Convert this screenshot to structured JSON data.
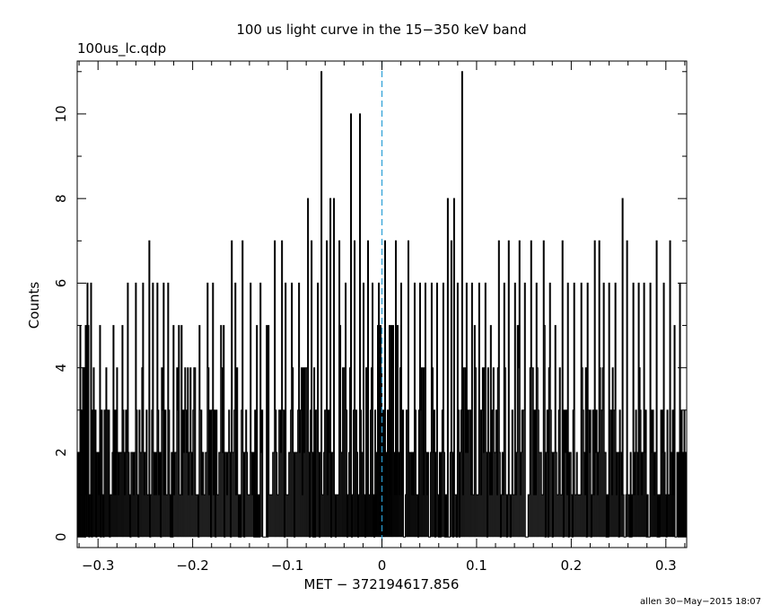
{
  "chart_data": {
    "type": "line",
    "title": "100 us light curve in the 15−350 keV band",
    "subtitle": "100us_lc.qdp",
    "xlabel": "MET − 372194617.856",
    "ylabel": "Counts",
    "footer": "allen 30−May−2015 18:07",
    "xlim": [
      -0.322,
      0.322
    ],
    "ylim": [
      -0.25,
      11.25
    ],
    "x_ticks": [
      {
        "value": -0.3,
        "label": "−0.3"
      },
      {
        "value": -0.2,
        "label": "−0.2"
      },
      {
        "value": -0.1,
        "label": "−0.1"
      },
      {
        "value": 0,
        "label": "0"
      },
      {
        "value": 0.1,
        "label": "0.1"
      },
      {
        "value": 0.2,
        "label": "0.2"
      },
      {
        "value": 0.3,
        "label": "0.3"
      }
    ],
    "y_ticks": [
      {
        "value": 0,
        "label": "0"
      },
      {
        "value": 2,
        "label": "2"
      },
      {
        "value": 4,
        "label": "4"
      },
      {
        "value": 6,
        "label": "6"
      },
      {
        "value": 8,
        "label": "8"
      },
      {
        "value": 10,
        "label": "10"
      }
    ],
    "bin_width": 0.0001,
    "reference_line": {
      "x": 0,
      "color": "#2a9fd6",
      "style": "dashed"
    },
    "series_color": "#000000",
    "grid": false,
    "peaks": [
      {
        "x": -0.312,
        "y": 6
      },
      {
        "x": -0.3075,
        "y": 6
      },
      {
        "x": -0.298,
        "y": 5
      },
      {
        "x": -0.284,
        "y": 5
      },
      {
        "x": -0.275,
        "y": 5
      },
      {
        "x": -0.269,
        "y": 6
      },
      {
        "x": -0.26,
        "y": 6
      },
      {
        "x": -0.253,
        "y": 6
      },
      {
        "x": -0.2465,
        "y": 7
      },
      {
        "x": -0.242,
        "y": 6
      },
      {
        "x": -0.238,
        "y": 6
      },
      {
        "x": -0.231,
        "y": 6
      },
      {
        "x": -0.226,
        "y": 6
      },
      {
        "x": -0.212,
        "y": 5
      },
      {
        "x": -0.193,
        "y": 5
      },
      {
        "x": -0.185,
        "y": 6
      },
      {
        "x": -0.179,
        "y": 6
      },
      {
        "x": -0.17,
        "y": 5
      },
      {
        "x": -0.159,
        "y": 7
      },
      {
        "x": -0.155,
        "y": 6
      },
      {
        "x": -0.148,
        "y": 7
      },
      {
        "x": -0.139,
        "y": 6
      },
      {
        "x": -0.129,
        "y": 6
      },
      {
        "x": -0.122,
        "y": 5
      },
      {
        "x": -0.114,
        "y": 7
      },
      {
        "x": -0.106,
        "y": 7
      },
      {
        "x": -0.102,
        "y": 6
      },
      {
        "x": -0.096,
        "y": 6
      },
      {
        "x": -0.088,
        "y": 6
      },
      {
        "x": -0.079,
        "y": 8
      },
      {
        "x": -0.075,
        "y": 7
      },
      {
        "x": -0.068,
        "y": 6
      },
      {
        "x": -0.064,
        "y": 11
      },
      {
        "x": -0.059,
        "y": 7
      },
      {
        "x": -0.055,
        "y": 8
      },
      {
        "x": -0.051,
        "y": 8
      },
      {
        "x": -0.045,
        "y": 7
      },
      {
        "x": -0.039,
        "y": 6
      },
      {
        "x": -0.033,
        "y": 10
      },
      {
        "x": -0.029,
        "y": 7
      },
      {
        "x": -0.024,
        "y": 10
      },
      {
        "x": -0.02,
        "y": 6
      },
      {
        "x": -0.015,
        "y": 7
      },
      {
        "x": -0.01,
        "y": 6
      },
      {
        "x": -0.004,
        "y": 6
      },
      {
        "x": 0.003,
        "y": 7
      },
      {
        "x": 0.008,
        "y": 5
      },
      {
        "x": 0.014,
        "y": 7
      },
      {
        "x": 0.02,
        "y": 6
      },
      {
        "x": 0.027,
        "y": 7
      },
      {
        "x": 0.034,
        "y": 6
      },
      {
        "x": 0.04,
        "y": 6
      },
      {
        "x": 0.045,
        "y": 6
      },
      {
        "x": 0.052,
        "y": 6
      },
      {
        "x": 0.058,
        "y": 6
      },
      {
        "x": 0.064,
        "y": 6
      },
      {
        "x": 0.069,
        "y": 8
      },
      {
        "x": 0.073,
        "y": 7
      },
      {
        "x": 0.076,
        "y": 8
      },
      {
        "x": 0.08,
        "y": 6
      },
      {
        "x": 0.084,
        "y": 11
      },
      {
        "x": 0.089,
        "y": 6
      },
      {
        "x": 0.095,
        "y": 6
      },
      {
        "x": 0.102,
        "y": 6
      },
      {
        "x": 0.109,
        "y": 6
      },
      {
        "x": 0.115,
        "y": 5
      },
      {
        "x": 0.123,
        "y": 7
      },
      {
        "x": 0.129,
        "y": 6
      },
      {
        "x": 0.134,
        "y": 7
      },
      {
        "x": 0.14,
        "y": 6
      },
      {
        "x": 0.145,
        "y": 7
      },
      {
        "x": 0.151,
        "y": 6
      },
      {
        "x": 0.157,
        "y": 7
      },
      {
        "x": 0.163,
        "y": 6
      },
      {
        "x": 0.17,
        "y": 7
      },
      {
        "x": 0.177,
        "y": 6
      },
      {
        "x": 0.183,
        "y": 5
      },
      {
        "x": 0.19,
        "y": 7
      },
      {
        "x": 0.196,
        "y": 6
      },
      {
        "x": 0.203,
        "y": 6
      },
      {
        "x": 0.21,
        "y": 6
      },
      {
        "x": 0.217,
        "y": 6
      },
      {
        "x": 0.224,
        "y": 7
      },
      {
        "x": 0.229,
        "y": 7
      },
      {
        "x": 0.234,
        "y": 6
      },
      {
        "x": 0.24,
        "y": 6
      },
      {
        "x": 0.246,
        "y": 6
      },
      {
        "x": 0.254,
        "y": 8
      },
      {
        "x": 0.259,
        "y": 7
      },
      {
        "x": 0.265,
        "y": 6
      },
      {
        "x": 0.271,
        "y": 6
      },
      {
        "x": 0.277,
        "y": 6
      },
      {
        "x": 0.283,
        "y": 6
      },
      {
        "x": 0.29,
        "y": 7
      },
      {
        "x": 0.297,
        "y": 6
      },
      {
        "x": 0.304,
        "y": 7
      },
      {
        "x": 0.309,
        "y": 5
      },
      {
        "x": 0.314,
        "y": 6
      }
    ]
  }
}
